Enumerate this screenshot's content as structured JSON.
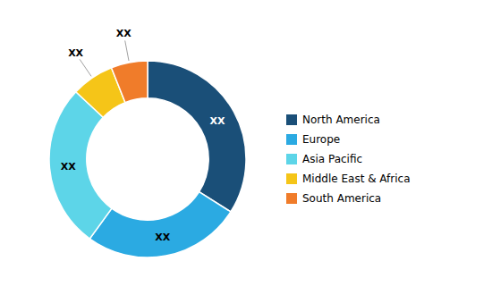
{
  "chart_data": {
    "type": "donut",
    "categories": [
      "North America",
      "Europe",
      "Asia Pacific",
      "Middle East & Africa",
      "South America"
    ],
    "values": [
      34,
      26,
      27,
      7,
      6
    ],
    "colors": [
      "#1a4f78",
      "#2baae2",
      "#5dd5e8",
      "#f5c518",
      "#f07c2a"
    ],
    "data_labels": true,
    "value_labels": [
      "XX",
      "XX",
      "XX",
      "XX",
      "XX"
    ],
    "legend": "right"
  }
}
